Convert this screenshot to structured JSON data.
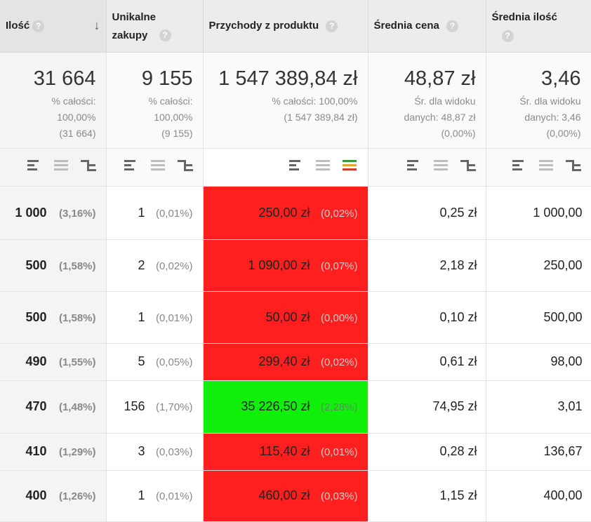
{
  "columns": [
    {
      "title": "Ilość",
      "help": "?",
      "sorted": true
    },
    {
      "title": "Unikalne zakupy",
      "help": "?"
    },
    {
      "title": "Przychody z produktu",
      "help": "?"
    },
    {
      "title": "Średnia cena",
      "help": "?"
    },
    {
      "title": "Średnia ilość",
      "help": "?"
    }
  ],
  "sort_icon": "arrow-down-icon",
  "totals": [
    {
      "value": "31 664",
      "line1": "% całości:",
      "line2": "100,00%",
      "line3": "(31 664)"
    },
    {
      "value": "9 155",
      "line1": "% całości:",
      "line2": "100,00%",
      "line3": "(9 155)"
    },
    {
      "value": "1 547 389,84 zł",
      "line1": "% całości: 100,00%",
      "line2": "(1 547 389,84 zł)",
      "line3": ""
    },
    {
      "value": "48,87 zł",
      "line1": "Śr. dla widoku",
      "line2": "danych: 48,87 zł",
      "line3": "(0,00%)"
    },
    {
      "value": "3,46",
      "line1": "Śr. dla widoku",
      "line2": "danych: 3,46",
      "line3": "(0,00%)"
    }
  ],
  "view_icons": [
    "performance-view-icon",
    "percentage-view-icon",
    "comparison-view-icon"
  ],
  "comparison_colors": {
    "positive": "#10f00a",
    "negative": "#ff1f1f"
  },
  "rows": [
    {
      "qty": "1 000",
      "qty_pct": "(3,16%)",
      "uniq": "1",
      "uniq_pct": "(0,01%)",
      "rev": "250,00 zł",
      "rev_pct": "(0,02%)",
      "rev_state": "negative",
      "avg_price": "0,25 zł",
      "avg_qty": "1 000,00"
    },
    {
      "qty": "500",
      "qty_pct": "(1,58%)",
      "uniq": "2",
      "uniq_pct": "(0,02%)",
      "rev": "1 090,00 zł",
      "rev_pct": "(0,07%)",
      "rev_state": "negative",
      "avg_price": "2,18 zł",
      "avg_qty": "250,00"
    },
    {
      "qty": "500",
      "qty_pct": "(1,58%)",
      "uniq": "1",
      "uniq_pct": "(0,01%)",
      "rev": "50,00 zł",
      "rev_pct": "(0,00%)",
      "rev_state": "negative",
      "avg_price": "0,10 zł",
      "avg_qty": "500,00"
    },
    {
      "qty": "490",
      "qty_pct": "(1,55%)",
      "uniq": "5",
      "uniq_pct": "(0,05%)",
      "rev": "299,40 zł",
      "rev_pct": "(0,02%)",
      "rev_state": "negative",
      "avg_price": "0,61 zł",
      "avg_qty": "98,00"
    },
    {
      "qty": "470",
      "qty_pct": "(1,48%)",
      "uniq": "156",
      "uniq_pct": "(1,70%)",
      "rev": "35 226,50 zł",
      "rev_pct": "(2,28%)",
      "rev_state": "positive",
      "avg_price": "74,95 zł",
      "avg_qty": "3,01"
    },
    {
      "qty": "410",
      "qty_pct": "(1,29%)",
      "uniq": "3",
      "uniq_pct": "(0,03%)",
      "rev": "115,40 zł",
      "rev_pct": "(0,01%)",
      "rev_state": "negative",
      "avg_price": "0,28 zł",
      "avg_qty": "136,67"
    },
    {
      "qty": "400",
      "qty_pct": "(1,26%)",
      "uniq": "1",
      "uniq_pct": "(0,01%)",
      "rev": "460,00 zł",
      "rev_pct": "(0,03%)",
      "rev_state": "negative",
      "avg_price": "1,15 zł",
      "avg_qty": "400,00"
    }
  ]
}
